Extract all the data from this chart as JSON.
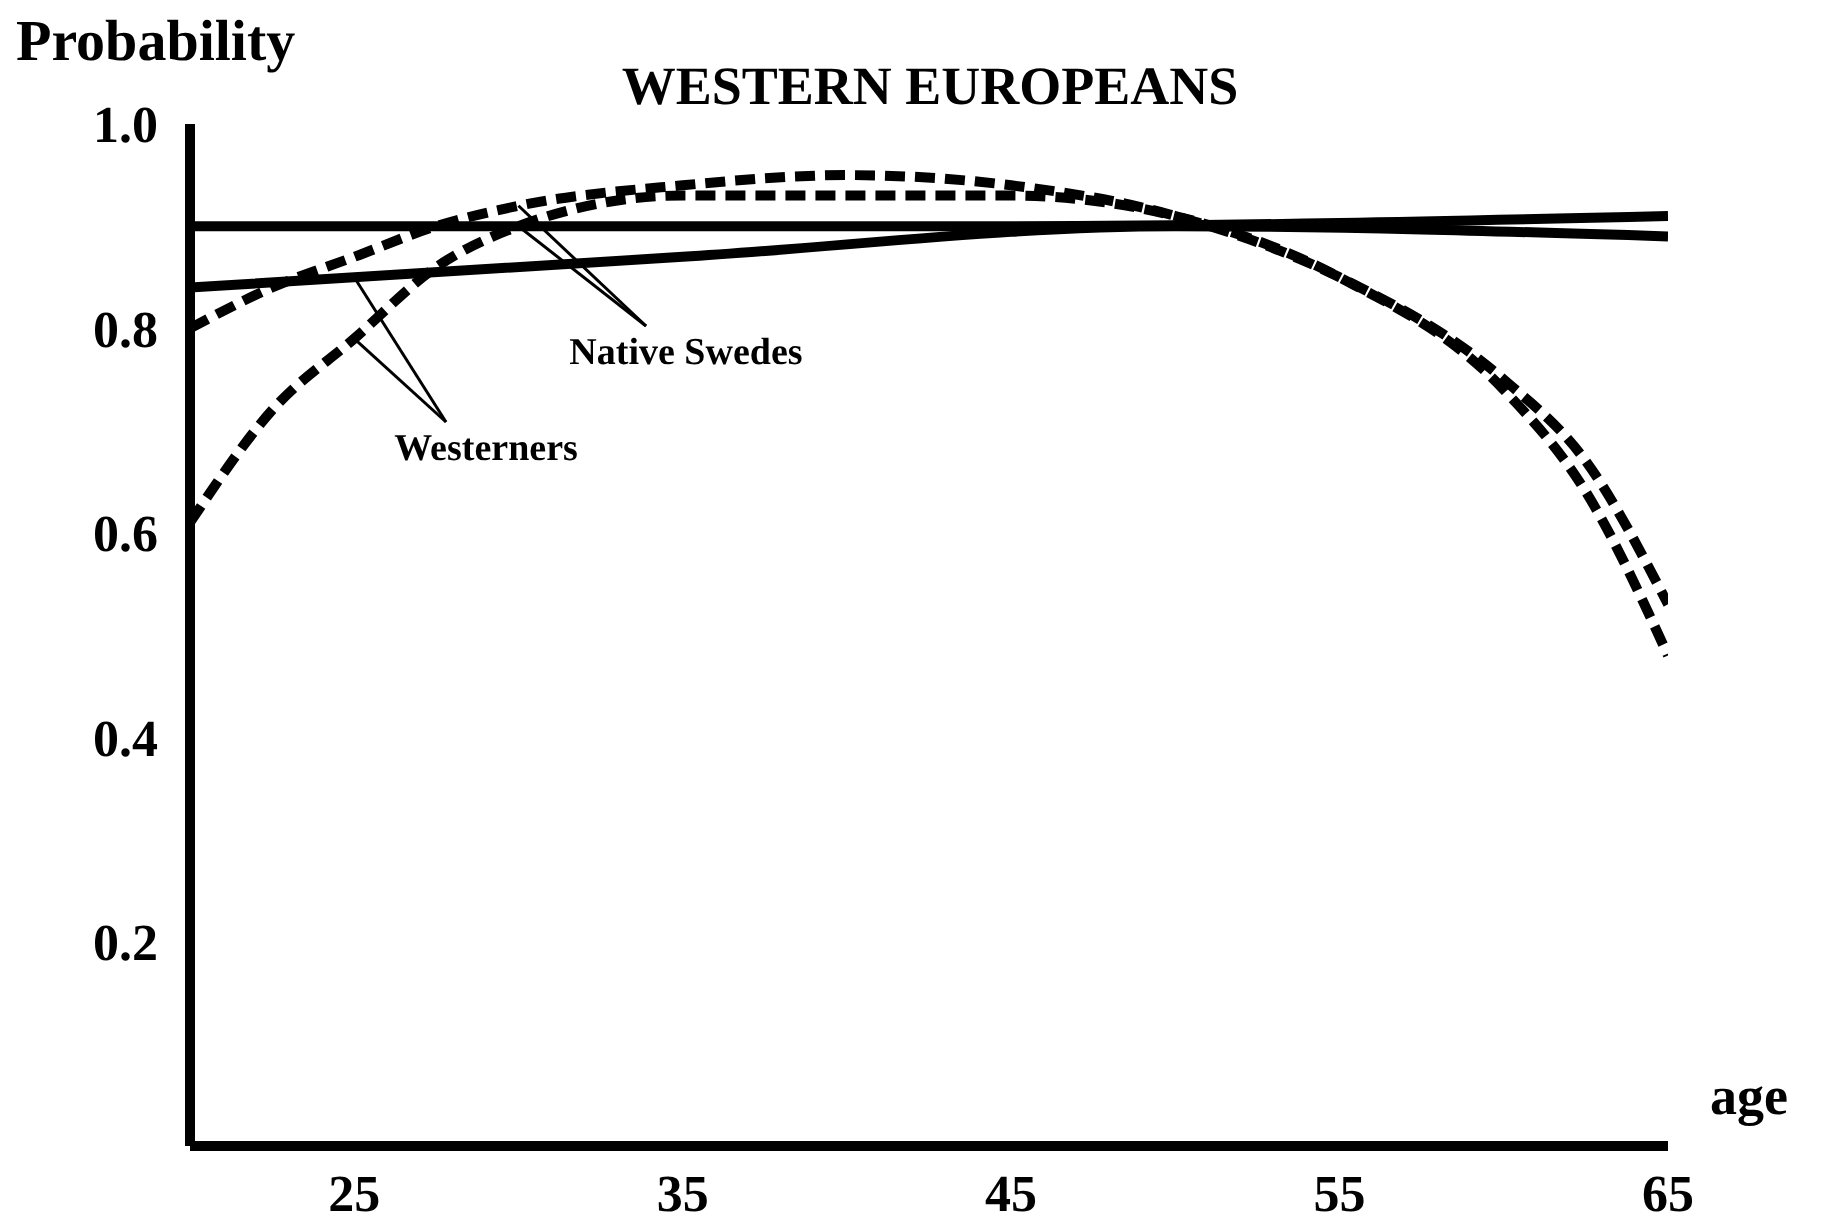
{
  "chart_data": {
    "type": "line",
    "title": "WESTERN EUROPEANS",
    "xlabel": "age",
    "ylabel": "Probability",
    "x": [
      20,
      22.5,
      25,
      27.5,
      30,
      35,
      40,
      45,
      50,
      55,
      60,
      62.5,
      65
    ],
    "series": [
      {
        "color": "#000000",
        "line_style": "dashed",
        "values": [
          0.8,
          0.84,
          0.87,
          0.9,
          0.92,
          0.94,
          0.95,
          0.94,
          0.91,
          0.85,
          0.75,
          0.67,
          0.53
        ]
      },
      {
        "color": "#000000",
        "line_style": "dashed",
        "values": [
          0.61,
          0.72,
          0.79,
          0.86,
          0.9,
          0.93,
          0.93,
          0.93,
          0.91,
          0.85,
          0.74,
          0.64,
          0.48
        ]
      },
      {
        "color": "#000000",
        "line_style": "solid",
        "x": [
          20,
          45,
          65
        ],
        "values": [
          0.9,
          0.9,
          0.91
        ]
      },
      {
        "color": "#000000",
        "line_style": "solid",
        "x": [
          20,
          35,
          50,
          65
        ],
        "values": [
          0.84,
          0.87,
          0.9,
          0.89
        ]
      }
    ],
    "annotations": [
      {
        "text": "Native Swedes",
        "x": 30,
        "y": 0.92
      },
      {
        "text": "Westerners",
        "x": 25,
        "y": 0.79
      }
    ],
    "xlim": [
      20,
      65
    ],
    "xticks": [
      25,
      35,
      45,
      55,
      65
    ],
    "ylim": [
      0,
      1
    ],
    "yticks": [
      0.2,
      0.4,
      0.6,
      0.8,
      {
        "value": 1,
        "label": "1.0"
      }
    ],
    "marker": "none",
    "grid": false
  }
}
